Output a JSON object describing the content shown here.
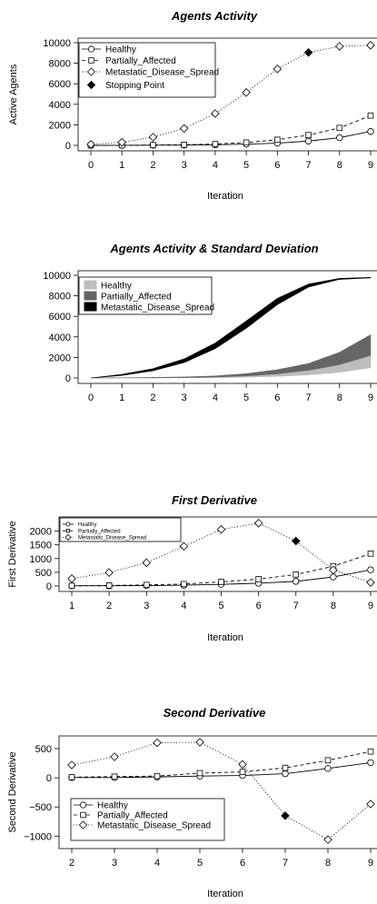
{
  "chart_data": [
    {
      "type": "line",
      "title": "Agents Activity",
      "xlabel": "Iteration",
      "ylabel": "Active Agents",
      "x": [
        0,
        1,
        2,
        3,
        4,
        5,
        6,
        7,
        8,
        9
      ],
      "xticks": [
        "0",
        "1",
        "2",
        "3",
        "4",
        "5",
        "6",
        "7",
        "8",
        "9"
      ],
      "yticks": [
        "0",
        "2000",
        "4000",
        "6000",
        "8000",
        "10000"
      ],
      "ylim": [
        0,
        10000
      ],
      "legend_position": "top-left",
      "series": [
        {
          "name": "Healthy",
          "style": "solid",
          "marker": "circle",
          "values": [
            0,
            5,
            15,
            30,
            60,
            120,
            220,
            420,
            750,
            1350
          ]
        },
        {
          "name": "Partially_Affected",
          "style": "dashed",
          "marker": "square",
          "values": [
            0,
            10,
            30,
            60,
            130,
            280,
            550,
            1000,
            1700,
            2900
          ]
        },
        {
          "name": "Metastatic_Disease_Spread",
          "style": "dotted",
          "marker": "diamond",
          "values": [
            100,
            300,
            800,
            1650,
            3100,
            5150,
            7450,
            9050,
            9650,
            9750
          ]
        }
      ],
      "stopping_point": {
        "label": "Stopping Point",
        "x": 7,
        "y": 9050
      }
    },
    {
      "type": "area",
      "title": "Agents Activity & Standard Deviation",
      "x": [
        0,
        1,
        2,
        3,
        4,
        5,
        6,
        7,
        8,
        9
      ],
      "xticks": [
        "0",
        "1",
        "2",
        "3",
        "4",
        "5",
        "6",
        "7",
        "8",
        "9"
      ],
      "yticks": [
        "0",
        "2000",
        "4000",
        "6000",
        "8000",
        "10000"
      ],
      "ylim": [
        0,
        10000
      ],
      "legend_position": "top-left",
      "series": [
        {
          "name": "Healthy",
          "color": "#bdbdbd",
          "lower": [
            0,
            0,
            10,
            20,
            40,
            80,
            160,
            300,
            550,
            1000
          ],
          "upper": [
            0,
            10,
            30,
            60,
            120,
            240,
            450,
            800,
            1350,
            2200
          ]
        },
        {
          "name": "Partially_Affected",
          "color": "#666666",
          "lower": [
            0,
            10,
            20,
            40,
            90,
            200,
            400,
            750,
            1300,
            2200
          ],
          "upper": [
            0,
            20,
            50,
            100,
            200,
            420,
            800,
            1400,
            2500,
            4200
          ]
        },
        {
          "name": "Metastatic_Disease_Spread",
          "color": "#000000",
          "lower": [
            0,
            250,
            700,
            1500,
            2850,
            4850,
            7150,
            8850,
            9600,
            9750
          ],
          "upper": [
            0,
            350,
            900,
            1850,
            3400,
            5550,
            7750,
            9150,
            9700,
            9800
          ]
        }
      ]
    },
    {
      "type": "line",
      "title": "First Derivative",
      "xlabel": "Iteration",
      "ylabel": "First Derivative",
      "x": [
        1,
        2,
        3,
        4,
        5,
        6,
        7,
        8,
        9
      ],
      "xticks": [
        "1",
        "2",
        "3",
        "4",
        "5",
        "6",
        "7",
        "8",
        "9"
      ],
      "yticks": [
        "0",
        "500",
        "1000",
        "1500",
        "2000"
      ],
      "ylim": [
        0,
        2350
      ],
      "legend_position": "top-left",
      "series": [
        {
          "name": "Healthy",
          "style": "solid",
          "marker": "circle",
          "values": [
            5,
            10,
            15,
            30,
            60,
            100,
            170,
            330,
            590
          ]
        },
        {
          "name": "Partially_Affected",
          "style": "dashed",
          "marker": "square",
          "values": [
            10,
            20,
            40,
            70,
            150,
            250,
            420,
            720,
            1180
          ]
        },
        {
          "name": "Metastatic_Disease_Spread",
          "style": "dotted",
          "marker": "diamond",
          "values": [
            270,
            490,
            850,
            1450,
            2060,
            2290,
            1640,
            580,
            130
          ]
        }
      ],
      "stopping_point": {
        "x": 7,
        "y": 1640
      }
    },
    {
      "type": "line",
      "title": "Second Derivative",
      "xlabel": "Iteration",
      "ylabel": "Second Derivative",
      "x": [
        2,
        3,
        4,
        5,
        6,
        7,
        8,
        9
      ],
      "xticks": [
        "2",
        "3",
        "4",
        "5",
        "6",
        "7",
        "8",
        "9"
      ],
      "yticks": [
        "−1000",
        "−500",
        "0",
        "500"
      ],
      "ylim": [
        -1120,
        640
      ],
      "legend_position": "bottom-left",
      "series": [
        {
          "name": "Healthy",
          "style": "solid",
          "marker": "circle",
          "values": [
            5,
            5,
            15,
            30,
            40,
            70,
            160,
            260
          ]
        },
        {
          "name": "Partially_Affected",
          "style": "dashed",
          "marker": "square",
          "values": [
            10,
            20,
            30,
            80,
            100,
            170,
            300,
            450
          ]
        },
        {
          "name": "Metastatic_Disease_Spread",
          "style": "dotted",
          "marker": "diamond",
          "values": [
            220,
            360,
            600,
            610,
            230,
            -650,
            -1060,
            -450
          ]
        }
      ],
      "stopping_point": {
        "x": 7,
        "y": -650
      }
    }
  ]
}
